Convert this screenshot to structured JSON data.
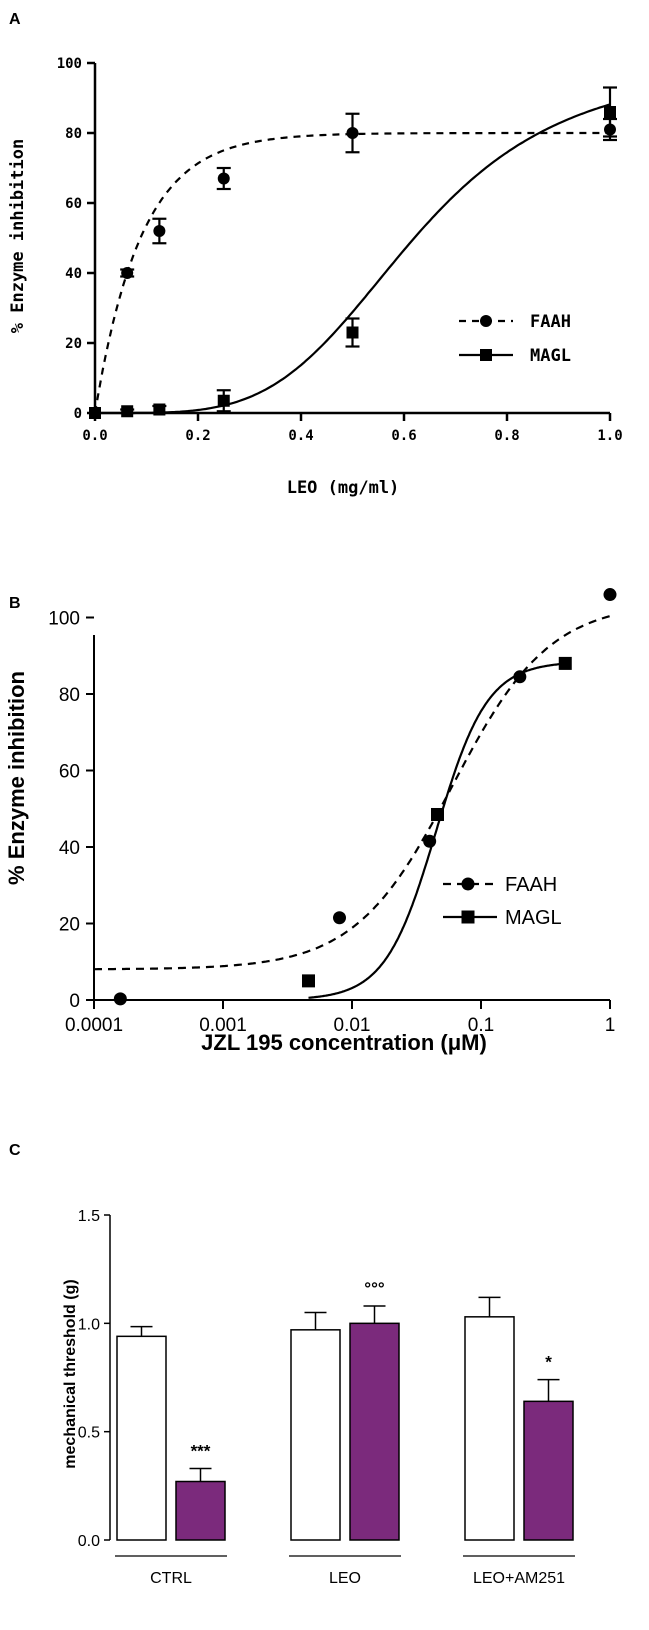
{
  "panels": {
    "a": {
      "letter": "A"
    },
    "b": {
      "letter": "B"
    },
    "c": {
      "letter": "C"
    }
  },
  "chart_data": [
    {
      "type": "line",
      "panel": "A",
      "xlabel": "LEO (mg/ml)",
      "ylabel": "% Enzyme inhibition",
      "xlim": [
        0.0,
        1.0
      ],
      "ylim": [
        0,
        100
      ],
      "xticks": [
        "0.0",
        "0.2",
        "0.4",
        "0.6",
        "0.8",
        "1.0"
      ],
      "yticks": [
        "0",
        "20",
        "40",
        "60",
        "80",
        "100"
      ],
      "legend_position": "right-middle",
      "series": [
        {
          "name": "FAAH",
          "marker": "circle",
          "line": "dashed",
          "x": [
            0.0,
            0.0625,
            0.125,
            0.25,
            0.5,
            1.0
          ],
          "y": [
            0,
            40,
            52,
            67,
            80,
            81
          ],
          "err": [
            0,
            1,
            3.5,
            3,
            5.5,
            3
          ]
        },
        {
          "name": "MAGL",
          "marker": "square",
          "line": "solid",
          "x": [
            0.0,
            0.0625,
            0.125,
            0.25,
            0.5,
            1.0
          ],
          "y": [
            0,
            0.5,
            1,
            3.5,
            23,
            86
          ],
          "err": [
            0,
            0.5,
            1,
            3,
            4,
            7
          ]
        }
      ]
    },
    {
      "type": "line",
      "panel": "B",
      "xlabel": "JZL 195 concentration (μM)",
      "ylabel": "% Enzyme inhibition",
      "xscale": "log",
      "xlim": [
        0.0001,
        1
      ],
      "ylim": [
        0,
        110
      ],
      "xticks": [
        "0.0001",
        "0.001",
        "0.01",
        "0.1",
        "1"
      ],
      "yticks": [
        "0",
        "20",
        "40",
        "60",
        "80",
        "100"
      ],
      "legend_position": "right-middle",
      "series": [
        {
          "name": "FAAH",
          "marker": "circle",
          "line": "dashed",
          "x": [
            0.00016,
            0.008,
            0.04,
            0.2,
            1.0
          ],
          "y": [
            0.3,
            21.5,
            41.5,
            84.5,
            106
          ]
        },
        {
          "name": "MAGL",
          "marker": "square",
          "line": "solid",
          "x": [
            0.0046,
            0.046,
            0.45
          ],
          "y": [
            5,
            48.5,
            88
          ]
        }
      ]
    },
    {
      "type": "bar",
      "panel": "C",
      "ylabel": "mechanical threshold (g)",
      "ylim": [
        0,
        1.5
      ],
      "yticks": [
        "0.0",
        "0.5",
        "1.0",
        "1.5"
      ],
      "categories": [
        "CTRL",
        "LEO",
        "LEO+AM251"
      ],
      "series": [
        {
          "fill": "#ffffff",
          "values": [
            0.94,
            0.97,
            1.03
          ],
          "err": [
            0.045,
            0.08,
            0.09
          ]
        },
        {
          "fill": "#7b2a7c",
          "values": [
            0.27,
            1.0,
            0.64
          ],
          "err": [
            0.06,
            0.08,
            0.1
          ]
        }
      ],
      "annotations": [
        {
          "category": "CTRL",
          "series": 1,
          "text": "***"
        },
        {
          "category": "LEO",
          "series": 1,
          "text": "°°°"
        },
        {
          "category": "LEO+AM251",
          "series": 1,
          "text": "*"
        }
      ]
    }
  ]
}
